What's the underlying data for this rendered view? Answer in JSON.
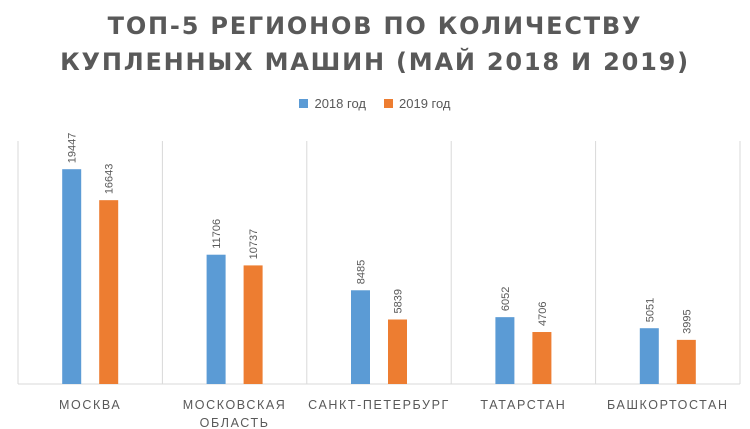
{
  "chart_data": {
    "type": "bar",
    "title_lines": [
      "ТОП-5 РЕГИОНОВ ПО КОЛИЧЕСТВУ",
      "КУПЛЕННЫХ МАШИН (МАЙ 2018 И 2019)"
    ],
    "categories": [
      [
        "МОСКВА"
      ],
      [
        "МОСКОВСКАЯ",
        "ОБЛАСТЬ"
      ],
      [
        "САНКТ-ПЕТЕРБУРГ"
      ],
      [
        "ТАТАРСТАН"
      ],
      [
        "БАШКОРТОСТАН"
      ]
    ],
    "series": [
      {
        "name": "2018 год",
        "color": "#5B9BD5",
        "values": [
          19447,
          11706,
          8485,
          6052,
          5051
        ]
      },
      {
        "name": "2019 год",
        "color": "#ED7D31",
        "values": [
          16643,
          10737,
          5839,
          4706,
          3995
        ]
      }
    ],
    "ylim": [
      0,
      22000
    ],
    "legend_position": "top-center",
    "data_labels": true,
    "data_label_rotation": "vertical",
    "grid": "vertical category separators",
    "xlabel": "",
    "ylabel": ""
  }
}
